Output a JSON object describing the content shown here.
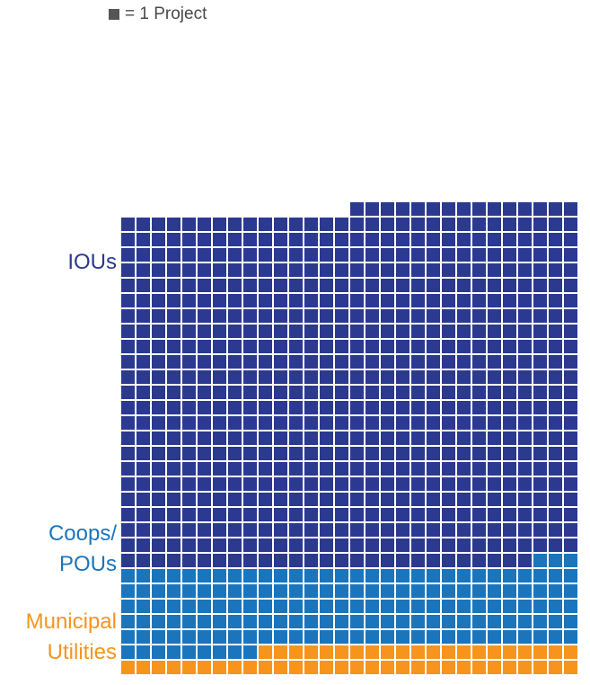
{
  "chart_data": {
    "type": "waffle",
    "unit_label": "= 1 Project",
    "columns": 30,
    "fill_order": "bottom-to-top, right-to-left",
    "series": [
      {
        "name": "Municipal Utilities",
        "values": [
          51
        ],
        "color": "#f7941d"
      },
      {
        "name": "Coops/ POUs",
        "values": [
          162
        ],
        "color": "#1b75bc"
      },
      {
        "name": "IOUs",
        "values": [
          702
        ],
        "color": "#2b3990"
      }
    ]
  },
  "labels": {
    "ious": "IOUs",
    "coops_line1": "Coops/",
    "coops_line2": "POUs",
    "muni_line1": "Municipal",
    "muni_line2": "Utilities"
  },
  "colors": {
    "legend_swatch": "#555555",
    "legend_text": "#4a4a4a"
  }
}
